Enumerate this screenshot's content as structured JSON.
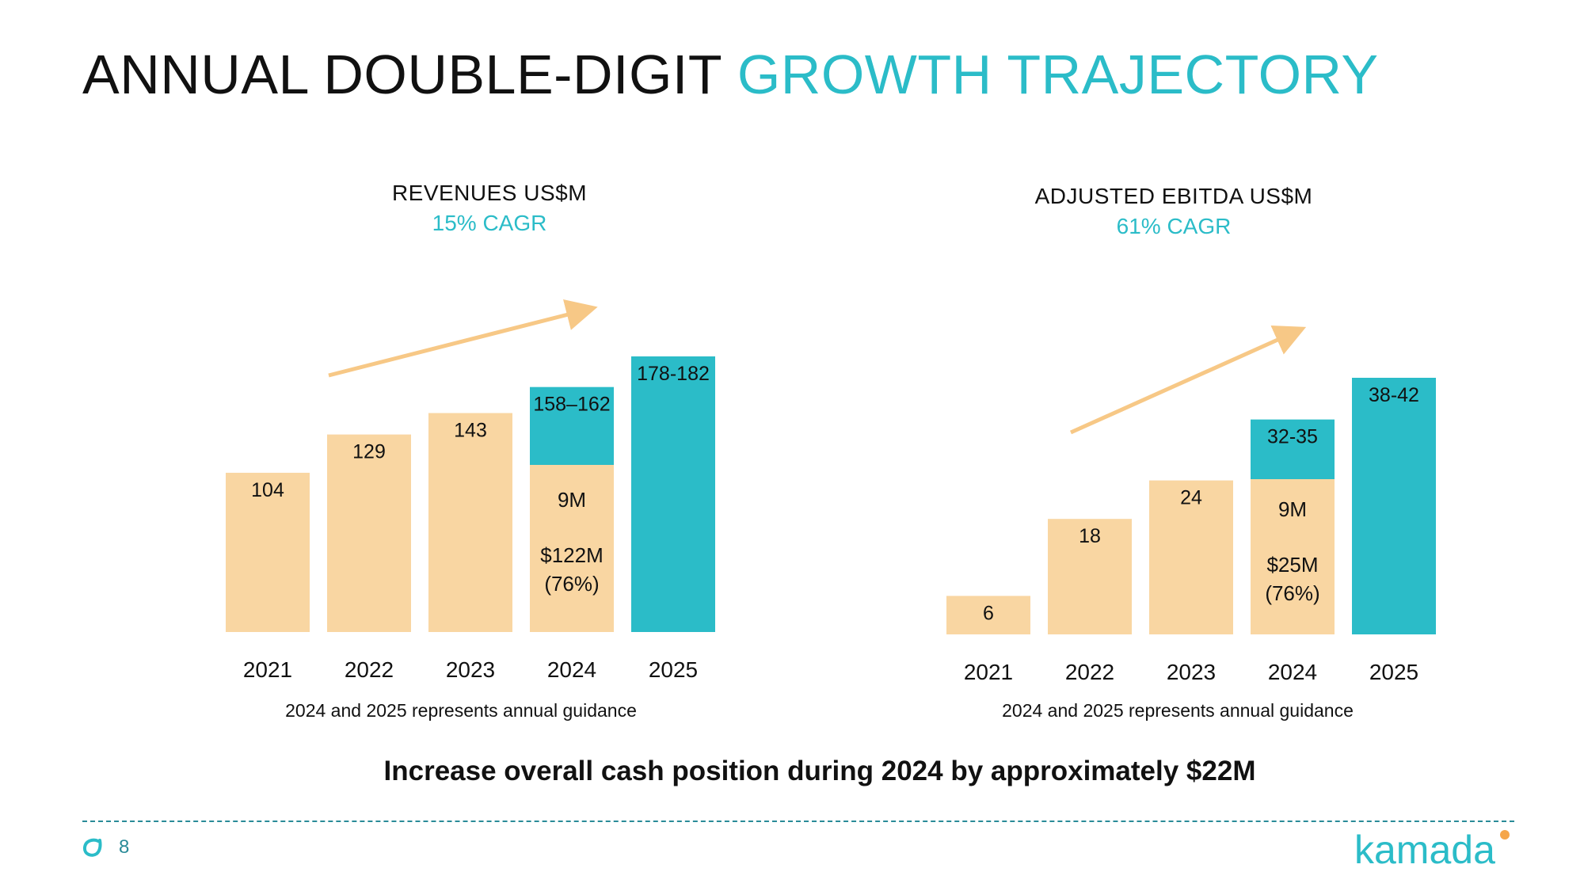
{
  "title": {
    "part1": "ANNUAL DOUBLE-DIGIT",
    "part2": "GROWTH TRAJECTORY"
  },
  "colors": {
    "accent": "#2bbcc8",
    "peach": "#f9d6a2",
    "arrow": "#f7c886",
    "teal_dark": "#2a8b98"
  },
  "chart_data": [
    {
      "type": "bar",
      "title": "REVENUES US$M",
      "subtitle": "15% CAGR",
      "categories": [
        "2021",
        "2022",
        "2023",
        "2024",
        "2025"
      ],
      "values": [
        104,
        129,
        143,
        160,
        180
      ],
      "labels": [
        "104",
        "129",
        "143",
        "158–162",
        "178-182"
      ],
      "bar_colors": [
        "peach",
        "peach",
        "peach",
        "split",
        "teal"
      ],
      "split_inner_labels": [
        "9M",
        "$122M",
        "(76%)"
      ],
      "ylim": [
        0,
        180
      ],
      "footnote": "2024 and 2025 represents annual guidance"
    },
    {
      "type": "bar",
      "title": "ADJUSTED EBITDA US$M",
      "subtitle": "61% CAGR",
      "categories": [
        "2021",
        "2022",
        "2023",
        "2024",
        "2025"
      ],
      "values": [
        6,
        18,
        24,
        33.5,
        40
      ],
      "labels": [
        "6",
        "18",
        "24",
        "32-35",
        "38-42"
      ],
      "bar_colors": [
        "peach",
        "peach",
        "peach",
        "split",
        "teal"
      ],
      "split_inner_labels": [
        "9M",
        "$25M",
        "(76%)"
      ],
      "ylim": [
        0,
        40
      ],
      "footnote": "2024 and 2025 represents annual guidance"
    }
  ],
  "cash_note": "Increase overall cash position during 2024 by approximately $22M",
  "page_number": "8",
  "logo_text": "kamada",
  "icons": {
    "page": "kamada-mark-icon",
    "logo": "kamada-logo"
  }
}
